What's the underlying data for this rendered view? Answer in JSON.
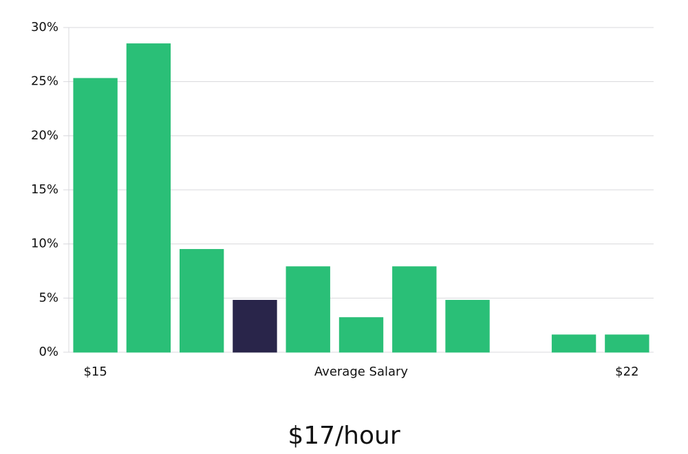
{
  "chart_data": {
    "type": "bar",
    "categories": [
      "$15",
      null,
      null,
      null,
      null,
      null,
      null,
      null,
      null,
      null,
      "$22"
    ],
    "values": [
      25.3,
      28.5,
      9.5,
      4.8,
      7.9,
      3.2,
      7.9,
      4.8,
      0,
      1.6,
      1.6
    ],
    "colors": [
      "#2abf77",
      "#2abf77",
      "#2abf77",
      "#29254a",
      "#2abf77",
      "#2abf77",
      "#2abf77",
      "#2abf77",
      "#2abf77",
      "#2abf77",
      "#2abf77"
    ],
    "x_label": "Average Salary",
    "annotation": "$17/hour",
    "ylim": [
      0,
      30
    ],
    "yticks": [
      {
        "value": 0,
        "label": "0%"
      },
      {
        "value": 5,
        "label": "5%"
      },
      {
        "value": 10,
        "label": "10%"
      },
      {
        "value": 15,
        "label": "15%"
      },
      {
        "value": 20,
        "label": "20%"
      },
      {
        "value": 25,
        "label": "25%"
      },
      {
        "value": 30,
        "label": "30%"
      }
    ],
    "grid": true
  }
}
